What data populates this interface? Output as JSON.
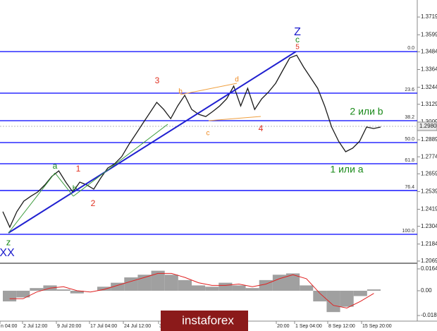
{
  "chart_data": {
    "type": "line",
    "color": "#1a1a1a",
    "values": [
      1.2403,
      1.2298,
      1.2403,
      1.2474,
      1.2507,
      1.2536,
      1.2584,
      1.2641,
      1.2679,
      1.2603,
      1.2536,
      1.2603,
      1.2584,
      1.2555,
      1.2631,
      1.2698,
      1.2727,
      1.2775,
      1.2856,
      1.2927,
      1.2999,
      1.307,
      1.3142,
      1.3094,
      1.3032,
      1.3118,
      1.319,
      1.3094,
      1.3061,
      1.3046,
      1.308,
      1.3118,
      1.3166,
      1.3252,
      1.3118,
      1.3237,
      1.3094,
      1.3166,
      1.3213,
      1.3271,
      1.3357,
      1.3442,
      1.3461,
      1.338,
      1.3309,
      1.3237,
      1.3118,
      1.2975,
      1.2879,
      1.2808,
      1.2832,
      1.2879,
      1.2975,
      1.2965,
      1.2975
    ],
    "ylim": [
      1.2059,
      1.3834
    ],
    "yticks": [
      1.3719,
      1.3599,
      1.3484,
      1.3364,
      1.3244,
      1.3129,
      1.3009,
      1.2889,
      1.2774,
      1.2659,
      1.2539,
      1.2419,
      1.2304,
      1.2184,
      1.2069
    ],
    "current_price": {
      "value": 1.298,
      "label": "1.2980"
    },
    "fib_levels": [
      {
        "label": "0.0",
        "price": 1.3485
      },
      {
        "label": "23.6",
        "price": 1.3204
      },
      {
        "label": "38.2",
        "price": 1.3018
      },
      {
        "label": "50.0",
        "price": 1.287
      },
      {
        "label": "61.8",
        "price": 1.2727
      },
      {
        "label": "76.4",
        "price": 1.2546
      },
      {
        "label": "100.0",
        "price": 1.225
      }
    ],
    "fib_color": "#0000ff",
    "x_labels": [
      "n 04:00",
      "2 Jul 12:00",
      "9 Jul 20:00",
      "17 Jul 04:00",
      "24 Jul 12:00",
      "3",
      "20:00",
      "1 Sep 04:00",
      "8 Sep 12:00",
      "15 Sep 20:00"
    ],
    "wave_labels": [
      {
        "text": "Z",
        "color": "#1a1acc"
      },
      {
        "text": "c",
        "color": "#1a8a1a"
      },
      {
        "text": "5",
        "color": "#e03020"
      },
      {
        "text": "3",
        "color": "#e03020"
      },
      {
        "text": "d",
        "color": "#f08a20"
      },
      {
        "text": "b",
        "color": "#f08a20"
      },
      {
        "text": "c",
        "color": "#f08a20"
      },
      {
        "text": "4",
        "color": "#e03020"
      },
      {
        "text": "a",
        "color": "#1a8a1a"
      },
      {
        "text": "1",
        "color": "#e03020"
      },
      {
        "text": "b",
        "color": "#1a8a1a"
      },
      {
        "text": "2",
        "color": "#e03020"
      },
      {
        "text": "z",
        "color": "#1a8a1a"
      },
      {
        "text": "XX",
        "color": "#1a1acc"
      },
      {
        "text": "2 или b",
        "color": "#1a8a1a"
      },
      {
        "text": "1 или a",
        "color": "#1a8a1a"
      }
    ],
    "oscillator": {
      "type": "bar",
      "color": "#a0a0a0",
      "signal_color": "#e02020",
      "values": [
        -0.008,
        -0.005,
        0.002,
        0.004,
        0.001,
        -0.002,
        0.0,
        0.003,
        0.006,
        0.01,
        0.012,
        0.015,
        0.012,
        0.008,
        0.004,
        0.003,
        0.006,
        0.004,
        0.002,
        0.008,
        0.012,
        0.013,
        0.004,
        -0.008,
        -0.016,
        -0.012,
        -0.004,
        0.001
      ],
      "signal": [
        -0.006,
        -0.006,
        -0.001,
        0.002,
        0.003,
        0.0,
        -0.001,
        0.001,
        0.004,
        0.007,
        0.01,
        0.013,
        0.013,
        0.01,
        0.006,
        0.004,
        0.004,
        0.005,
        0.003,
        0.005,
        0.009,
        0.012,
        0.009,
        -0.002,
        -0.011,
        -0.013,
        -0.008,
        -0.002
      ],
      "ylim": [
        -0.0212,
        0.0185
      ],
      "yticks": [
        0.0164,
        {
          "value": 0,
          "label": "0.00"
        },
        -0.01859
      ]
    },
    "logo": "instaforex"
  }
}
